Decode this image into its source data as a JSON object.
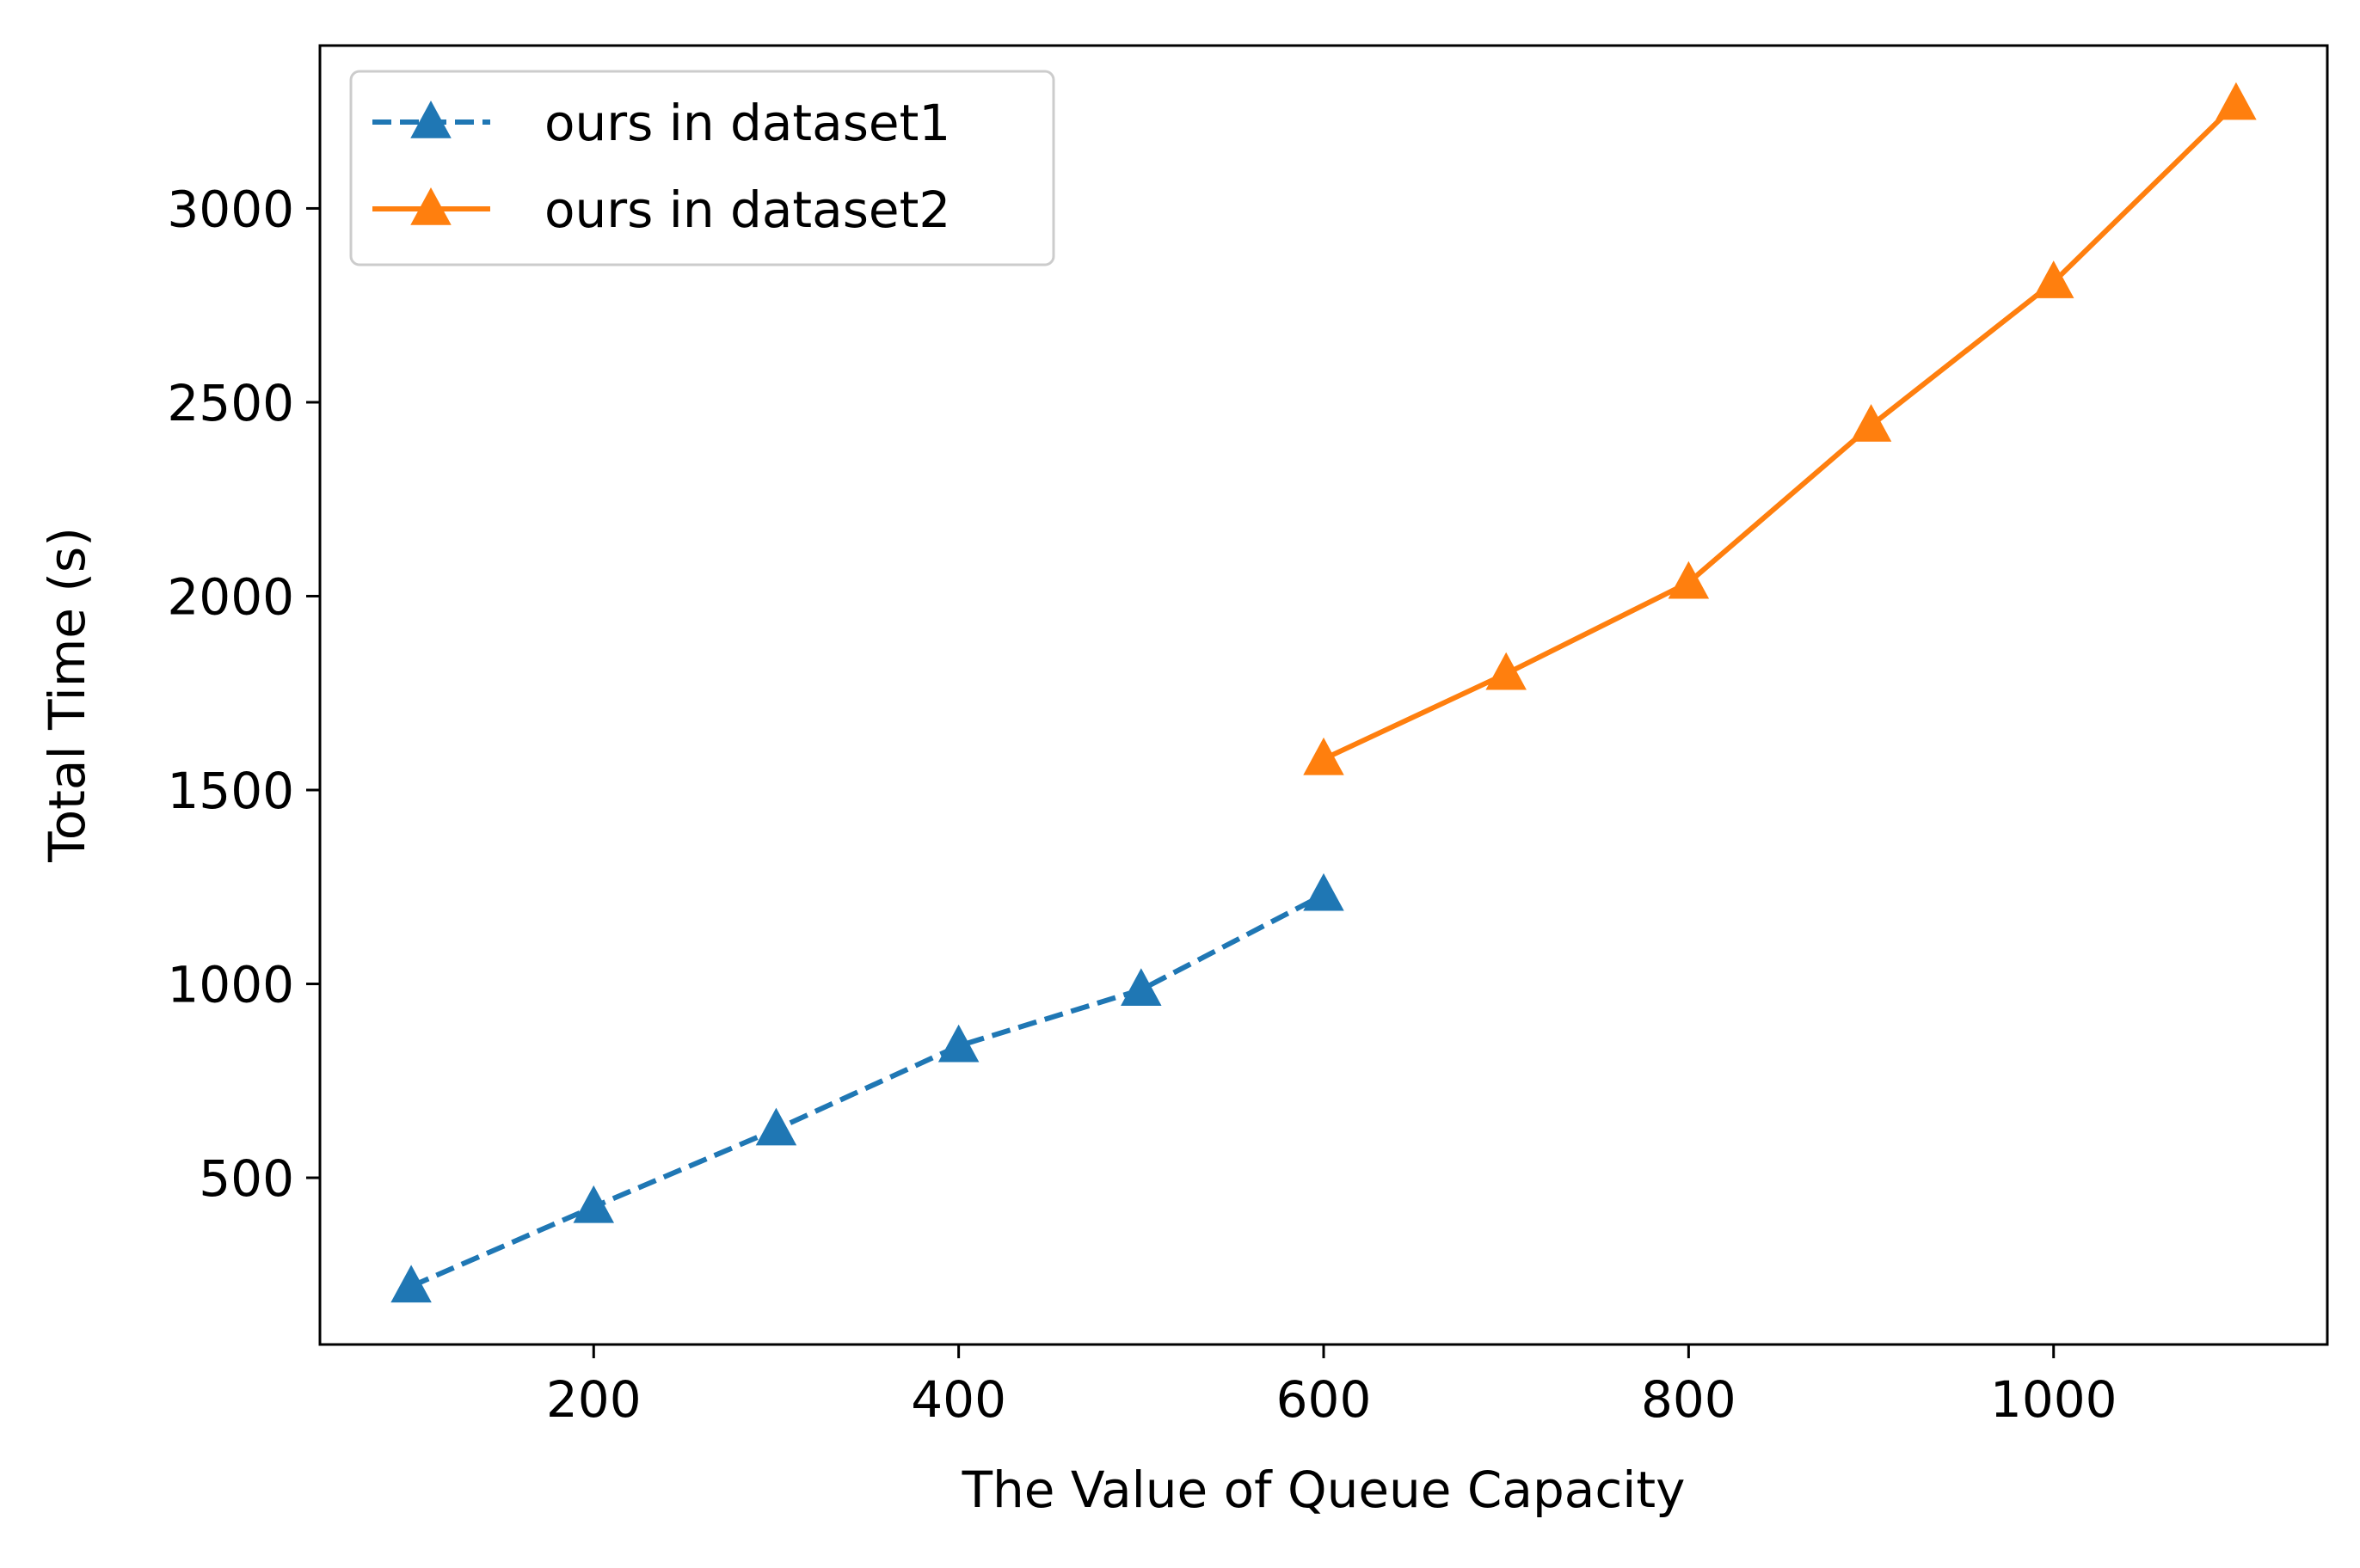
{
  "chart_data": {
    "type": "line",
    "title": "",
    "xlabel": "The Value of Queue Capacity",
    "ylabel": "Total Time (s)",
    "xlim": [
      50,
      1150
    ],
    "ylim": [
      70,
      3420
    ],
    "xticks": [
      200,
      400,
      600,
      800,
      1000
    ],
    "yticks": [
      500,
      1000,
      1500,
      2000,
      2500,
      3000
    ],
    "grid": false,
    "legend_position": "upper-left",
    "series": [
      {
        "name": "ours in dataset1",
        "color": "#1f77b4",
        "line_style": "dashed",
        "marker": "triangle-up",
        "x": [
          100,
          200,
          300,
          400,
          500,
          600
        ],
        "y": [
          220,
          425,
          625,
          840,
          985,
          1230
        ]
      },
      {
        "name": "ours in dataset2",
        "color": "#ff7f0e",
        "line_style": "solid",
        "marker": "triangle-up",
        "x": [
          600,
          700,
          800,
          900,
          1000,
          1100
        ],
        "y": [
          1580,
          1800,
          2035,
          2440,
          2810,
          3270
        ]
      }
    ]
  }
}
